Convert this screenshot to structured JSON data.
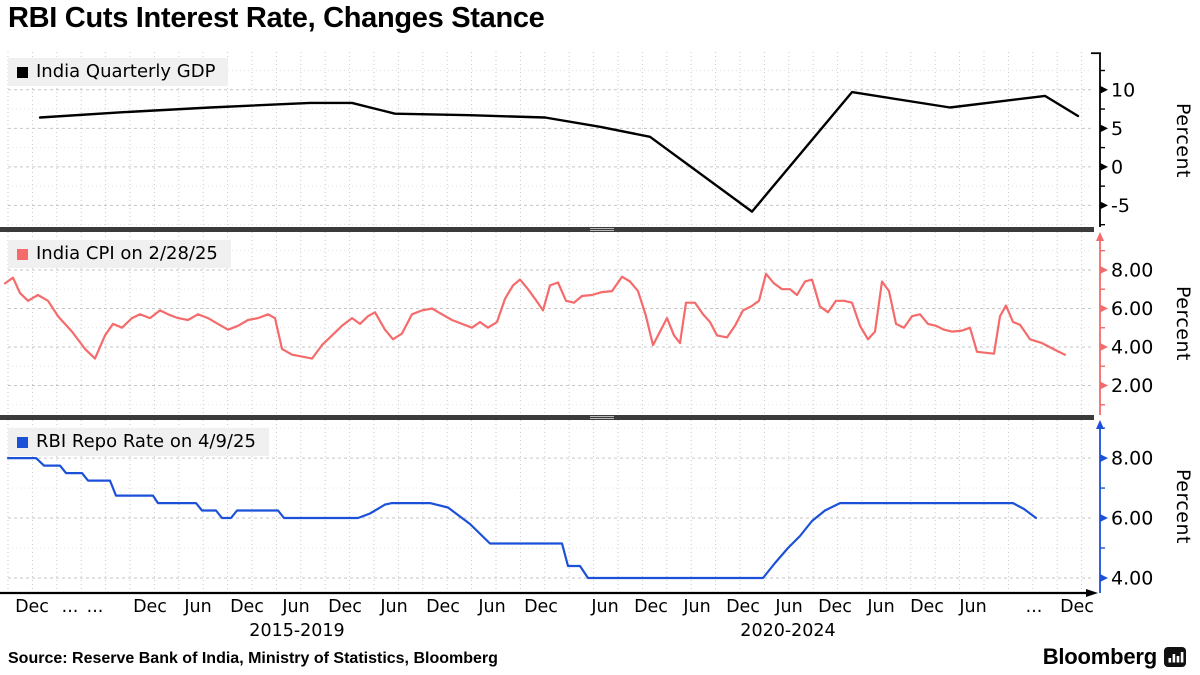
{
  "title": "RBI Cuts Interest Rate, Changes Stance",
  "footer": {
    "source": "Source: Reserve Bank of India, Ministry of Statistics, Bloomberg",
    "brand": "Bloomberg"
  },
  "colors": {
    "gdp_line": "#000000",
    "cpi_line": "#f56b6b",
    "repo_line": "#1b50d8",
    "legend_bg": "#f0f0f0",
    "separator": "#3b3b3b",
    "grid_major": "#c6c6c6",
    "grid_minor": "#e0e0e0"
  },
  "x_axis": {
    "ticks": [
      {
        "label": "Dec",
        "x": 32
      },
      {
        "label": "...",
        "x": 70
      },
      {
        "label": "...",
        "x": 95
      },
      {
        "label": "Dec",
        "x": 150
      },
      {
        "label": "Jun",
        "x": 198
      },
      {
        "label": "Dec",
        "x": 247
      },
      {
        "label": "Jun",
        "x": 296
      },
      {
        "label": "Dec",
        "x": 345
      },
      {
        "label": "Jun",
        "x": 394
      },
      {
        "label": "Dec",
        "x": 443
      },
      {
        "label": "Jun",
        "x": 492
      },
      {
        "label": "Dec",
        "x": 541
      },
      {
        "label": "Jun",
        "x": 605
      },
      {
        "label": "Dec",
        "x": 651
      },
      {
        "label": "Jun",
        "x": 697
      },
      {
        "label": "Dec",
        "x": 743
      },
      {
        "label": "Jun",
        "x": 789
      },
      {
        "label": "Dec",
        "x": 835
      },
      {
        "label": "Jun",
        "x": 881
      },
      {
        "label": "Dec",
        "x": 927
      },
      {
        "label": "Jun",
        "x": 973
      },
      {
        "label": "...",
        "x": 1034
      },
      {
        "label": "Dec",
        "x": 1077
      }
    ],
    "group_labels": [
      {
        "label": "2015-2019",
        "x": 297
      },
      {
        "label": "2020-2024",
        "x": 788
      }
    ]
  },
  "chart_data": [
    {
      "type": "line",
      "name": "India Quarterly GDP",
      "ylabel": "Percent",
      "color": "#000000",
      "stroke_width": 2.4,
      "cap": "flat",
      "yticks": [
        10,
        5,
        0,
        -5
      ],
      "ytick_labels": [
        "10",
        "5",
        "0",
        "-5"
      ],
      "yminor": [
        12.5,
        7.5,
        2.5,
        -2.5,
        -7.5
      ],
      "ylim": [
        -7.8,
        14.9
      ],
      "points": [
        [
          40,
          6.4
        ],
        [
          125,
          7.1
        ],
        [
          210,
          7.7
        ],
        [
          310,
          8.3
        ],
        [
          352,
          8.3
        ],
        [
          395,
          6.9
        ],
        [
          470,
          6.7
        ],
        [
          545,
          6.4
        ],
        [
          600,
          5.2
        ],
        [
          650,
          3.9
        ],
        [
          752,
          -5.8
        ],
        [
          852,
          9.7
        ],
        [
          950,
          7.7
        ],
        [
          1045,
          9.2
        ],
        [
          1078,
          6.6
        ]
      ]
    },
    {
      "type": "line",
      "name": "India CPI on 2/28/25",
      "ylabel": "Percent",
      "color": "#f56b6b",
      "stroke_width": 2.2,
      "cap": "arrow",
      "yticks": [
        8,
        6,
        4,
        2
      ],
      "ytick_labels": [
        "8.00",
        "6.00",
        "4.00",
        "2.00"
      ],
      "yminor": [
        9,
        7,
        5,
        3,
        1
      ],
      "ylim": [
        0.47,
        9.97
      ],
      "points": [
        [
          5,
          7.3
        ],
        [
          13,
          7.6
        ],
        [
          20,
          6.8
        ],
        [
          28,
          6.4
        ],
        [
          38,
          6.7
        ],
        [
          48,
          6.4
        ],
        [
          58,
          5.6
        ],
        [
          72,
          4.8
        ],
        [
          85,
          3.9
        ],
        [
          95,
          3.4
        ],
        [
          105,
          4.6
        ],
        [
          113,
          5.2
        ],
        [
          122,
          5.0
        ],
        [
          132,
          5.5
        ],
        [
          140,
          5.7
        ],
        [
          150,
          5.5
        ],
        [
          160,
          5.9
        ],
        [
          168,
          5.7
        ],
        [
          178,
          5.5
        ],
        [
          188,
          5.4
        ],
        [
          198,
          5.7
        ],
        [
          208,
          5.5
        ],
        [
          218,
          5.2
        ],
        [
          228,
          4.9
        ],
        [
          238,
          5.1
        ],
        [
          248,
          5.4
        ],
        [
          258,
          5.5
        ],
        [
          268,
          5.7
        ],
        [
          275,
          5.5
        ],
        [
          282,
          3.9
        ],
        [
          292,
          3.6
        ],
        [
          302,
          3.5
        ],
        [
          312,
          3.4
        ],
        [
          322,
          4.1
        ],
        [
          332,
          4.6
        ],
        [
          342,
          5.1
        ],
        [
          352,
          5.5
        ],
        [
          360,
          5.2
        ],
        [
          368,
          5.6
        ],
        [
          375,
          5.8
        ],
        [
          385,
          4.9
        ],
        [
          393,
          4.4
        ],
        [
          402,
          4.7
        ],
        [
          412,
          5.7
        ],
        [
          422,
          5.9
        ],
        [
          432,
          6.0
        ],
        [
          442,
          5.7
        ],
        [
          452,
          5.4
        ],
        [
          462,
          5.2
        ],
        [
          472,
          5.0
        ],
        [
          480,
          5.3
        ],
        [
          488,
          5.0
        ],
        [
          497,
          5.3
        ],
        [
          505,
          6.5
        ],
        [
          513,
          7.2
        ],
        [
          520,
          7.5
        ],
        [
          528,
          7.0
        ],
        [
          535,
          6.5
        ],
        [
          543,
          5.9
        ],
        [
          550,
          7.2
        ],
        [
          558,
          7.35
        ],
        [
          566,
          6.4
        ],
        [
          574,
          6.3
        ],
        [
          582,
          6.65
        ],
        [
          592,
          6.7
        ],
        [
          602,
          6.85
        ],
        [
          612,
          6.9
        ],
        [
          622,
          7.65
        ],
        [
          630,
          7.4
        ],
        [
          638,
          6.9
        ],
        [
          646,
          5.6
        ],
        [
          653,
          4.1
        ],
        [
          660,
          4.8
        ],
        [
          667,
          5.5
        ],
        [
          674,
          4.6
        ],
        [
          680,
          4.2
        ],
        [
          686,
          6.3
        ],
        [
          695,
          6.3
        ],
        [
          703,
          5.7
        ],
        [
          710,
          5.3
        ],
        [
          717,
          4.6
        ],
        [
          727,
          4.5
        ],
        [
          735,
          5.1
        ],
        [
          743,
          5.9
        ],
        [
          751,
          6.1
        ],
        [
          759,
          6.4
        ],
        [
          766,
          7.8
        ],
        [
          774,
          7.3
        ],
        [
          782,
          7.0
        ],
        [
          790,
          7.0
        ],
        [
          797,
          6.7
        ],
        [
          805,
          7.4
        ],
        [
          812,
          7.5
        ],
        [
          820,
          6.1
        ],
        [
          828,
          5.8
        ],
        [
          836,
          6.4
        ],
        [
          844,
          6.4
        ],
        [
          852,
          6.3
        ],
        [
          860,
          5.1
        ],
        [
          868,
          4.4
        ],
        [
          875,
          4.8
        ],
        [
          882,
          7.4
        ],
        [
          889,
          6.9
        ],
        [
          896,
          5.2
        ],
        [
          904,
          5.0
        ],
        [
          912,
          5.6
        ],
        [
          920,
          5.7
        ],
        [
          928,
          5.2
        ],
        [
          936,
          5.1
        ],
        [
          944,
          4.9
        ],
        [
          952,
          4.8
        ],
        [
          962,
          4.85
        ],
        [
          970,
          5.0
        ],
        [
          977,
          3.75
        ],
        [
          986,
          3.7
        ],
        [
          994,
          3.65
        ],
        [
          1000,
          5.6
        ],
        [
          1006,
          6.15
        ],
        [
          1013,
          5.3
        ],
        [
          1020,
          5.15
        ],
        [
          1030,
          4.4
        ],
        [
          1042,
          4.2
        ],
        [
          1055,
          3.85
        ],
        [
          1065,
          3.6
        ]
      ]
    },
    {
      "type": "line",
      "name": "RBI Repo Rate on 4/9/25",
      "ylabel": "Percent",
      "color": "#1b50d8",
      "stroke_width": 2.2,
      "cap": "arrow",
      "yticks": [
        8,
        6,
        4
      ],
      "ytick_labels": [
        "8.00",
        "6.00",
        "4.00"
      ],
      "yminor": [
        9,
        7,
        5
      ],
      "ylim": [
        3.5,
        9.27
      ],
      "points": [
        [
          8,
          8
        ],
        [
          36,
          8
        ],
        [
          44,
          7.75
        ],
        [
          60,
          7.75
        ],
        [
          66,
          7.5
        ],
        [
          82,
          7.5
        ],
        [
          88,
          7.25
        ],
        [
          110,
          7.25
        ],
        [
          116,
          6.75
        ],
        [
          153,
          6.75
        ],
        [
          158,
          6.5
        ],
        [
          196,
          6.5
        ],
        [
          202,
          6.25
        ],
        [
          216,
          6.25
        ],
        [
          222,
          6.0
        ],
        [
          231,
          6.0
        ],
        [
          237,
          6.25
        ],
        [
          278,
          6.25
        ],
        [
          284,
          6.0
        ],
        [
          358,
          6.0
        ],
        [
          370,
          6.15
        ],
        [
          385,
          6.45
        ],
        [
          392,
          6.5
        ],
        [
          430,
          6.5
        ],
        [
          448,
          6.35
        ],
        [
          470,
          5.8
        ],
        [
          490,
          5.15
        ],
        [
          562,
          5.15
        ],
        [
          568,
          4.4
        ],
        [
          580,
          4.4
        ],
        [
          588,
          4.0
        ],
        [
          763,
          4.0
        ],
        [
          775,
          4.5
        ],
        [
          788,
          5.0
        ],
        [
          800,
          5.4
        ],
        [
          812,
          5.9
        ],
        [
          825,
          6.25
        ],
        [
          840,
          6.5
        ],
        [
          1013,
          6.5
        ],
        [
          1024,
          6.3
        ],
        [
          1036,
          6.0
        ]
      ]
    }
  ]
}
